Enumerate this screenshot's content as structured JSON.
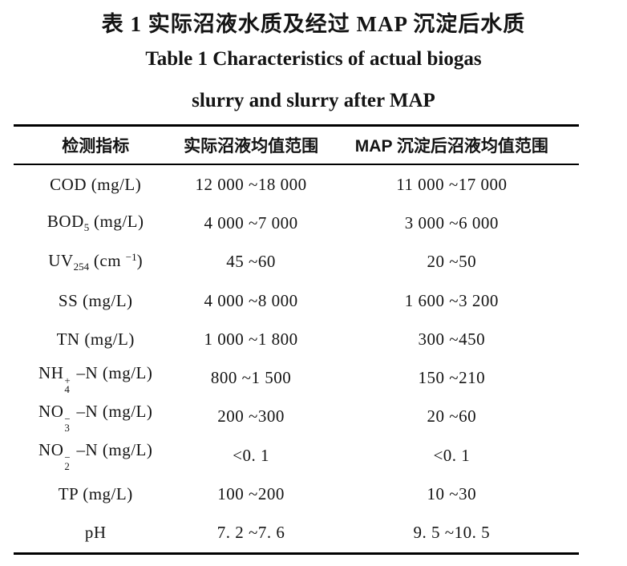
{
  "title": {
    "zh": "表 1  实际沼液水质及经过 MAP 沉淀后水质",
    "en_line1": "Table 1  Characteristics of actual biogas",
    "en_line2": "slurry and slurry after MAP"
  },
  "table": {
    "headers": [
      "检测指标",
      "实际沼液均值范围",
      "MAP 沉淀后沼液均值范围"
    ],
    "rows": [
      {
        "indicator": [
          {
            "text": "COD (mg/L)"
          }
        ],
        "actual": "12 000 ~18 000",
        "after_map": "11 000 ~17 000"
      },
      {
        "indicator": [
          {
            "text": "BOD"
          },
          {
            "sub": "5"
          },
          {
            "text": " (mg/L)"
          }
        ],
        "actual": "4 000 ~7 000",
        "after_map": "3 000 ~6 000"
      },
      {
        "indicator": [
          {
            "text": "UV"
          },
          {
            "sub": "254"
          },
          {
            "text": " (cm "
          },
          {
            "sup": "−1"
          },
          {
            "text": ")"
          }
        ],
        "actual": "45 ~60",
        "after_map": "20 ~50"
      },
      {
        "indicator": [
          {
            "text": "SS (mg/L)"
          }
        ],
        "actual": "4 000 ~8 000",
        "after_map": "1 600 ~3 200"
      },
      {
        "indicator": [
          {
            "text": "TN (mg/L)"
          }
        ],
        "actual": "1 000 ~1 800",
        "after_map": "300 ~450"
      },
      {
        "indicator": [
          {
            "text": "NH"
          },
          {
            "stack": {
              "sup": "+",
              "sub": "4"
            }
          },
          {
            "text": " –N (mg/L)"
          }
        ],
        "actual": "800 ~1 500",
        "after_map": "150 ~210"
      },
      {
        "indicator": [
          {
            "text": "NO"
          },
          {
            "stack": {
              "sup": "−",
              "sub": "3"
            }
          },
          {
            "text": " –N (mg/L)"
          }
        ],
        "actual": "200 ~300",
        "after_map": "20 ~60"
      },
      {
        "indicator": [
          {
            "text": "NO"
          },
          {
            "stack": {
              "sup": "−",
              "sub": "2"
            }
          },
          {
            "text": " –N (mg/L)"
          }
        ],
        "actual": "<0. 1",
        "after_map": "<0. 1"
      },
      {
        "indicator": [
          {
            "text": "TP (mg/L)"
          }
        ],
        "actual": "100 ~200",
        "after_map": "10 ~30"
      },
      {
        "indicator": [
          {
            "text": "pH"
          }
        ],
        "actual": "7. 2 ~7. 6",
        "after_map": "9. 5 ~10. 5"
      }
    ]
  }
}
